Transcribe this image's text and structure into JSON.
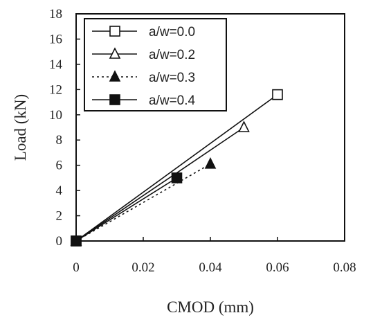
{
  "chart_data": {
    "type": "line",
    "xlabel": "CMOD (mm)",
    "ylabel": "Load (kN)",
    "xlim": [
      0,
      0.08
    ],
    "ylim": [
      0,
      18
    ],
    "x_ticks": [
      "0",
      "0.02",
      "0.04",
      "0.06",
      "0.08"
    ],
    "y_ticks": [
      "0",
      "2",
      "4",
      "6",
      "8",
      "10",
      "12",
      "14",
      "16",
      "18"
    ],
    "grid": false,
    "legend_position": "top-left",
    "series": [
      {
        "name": "a/w=0.0",
        "marker": "square-open",
        "line": "solid",
        "points": [
          {
            "x": 0,
            "y": 0
          },
          {
            "x": 0.06,
            "y": 11.6
          }
        ]
      },
      {
        "name": "a/w=0.2",
        "marker": "triangle-open",
        "line": "solid",
        "points": [
          {
            "x": 0,
            "y": 0
          },
          {
            "x": 0.05,
            "y": 9.0
          }
        ]
      },
      {
        "name": "a/w=0.3",
        "marker": "triangle-filled",
        "line": "dotted",
        "points": [
          {
            "x": 0,
            "y": 0
          },
          {
            "x": 0.04,
            "y": 6.1
          }
        ]
      },
      {
        "name": "a/w=0.4",
        "marker": "square-filled",
        "line": "solid",
        "points": [
          {
            "x": 0,
            "y": 0
          },
          {
            "x": 0.03,
            "y": 5.0
          }
        ]
      }
    ]
  }
}
